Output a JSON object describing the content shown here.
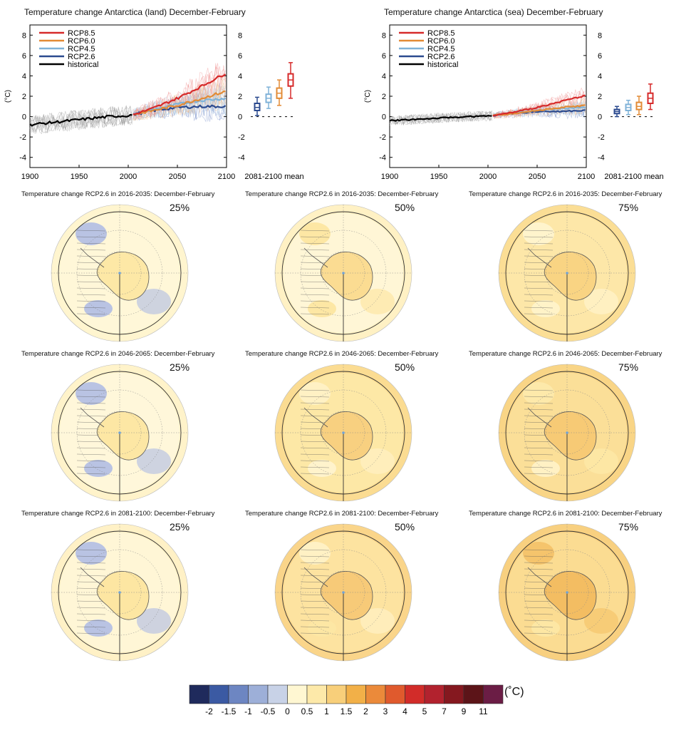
{
  "timeseries": [
    {
      "title": "Temperature change Antarctica (land) December-February",
      "ylabel": "(°C)",
      "legend": [
        "RCP8.5",
        "RCP6.0",
        "RCP4.5",
        "RCP2.6",
        "historical"
      ],
      "boxplot_label": "2081-2100 mean",
      "x_ticks": [
        "1900",
        "1950",
        "2000",
        "2050",
        "2100"
      ],
      "y_ticks": [
        "-4",
        "-2",
        "0",
        "2",
        "4",
        "6",
        "8"
      ]
    },
    {
      "title": "Temperature change Antarctica (sea) December-February",
      "ylabel": "(°C)",
      "legend": [
        "RCP8.5",
        "RCP6.0",
        "RCP4.5",
        "RCP2.6",
        "historical"
      ],
      "boxplot_label": "2081-2100 mean",
      "x_ticks": [
        "1900",
        "1950",
        "2000",
        "2050",
        "2100"
      ],
      "y_ticks": [
        "-4",
        "-2",
        "0",
        "2",
        "4",
        "6",
        "8"
      ]
    }
  ],
  "maps": [
    {
      "title": "Temperature change RCP2.6 in 2016-2035: December-February",
      "pct": "25%"
    },
    {
      "title": "Temperature change RCP2.6 in 2016-2035: December-February",
      "pct": "50%"
    },
    {
      "title": "Temperature change RCP2.6 in 2016-2035: December-February",
      "pct": "75%"
    },
    {
      "title": "Temperature change RCP2.6 in 2046-2065: December-February",
      "pct": "25%"
    },
    {
      "title": "Temperature change RCP2.6 in 2046-2065: December-February",
      "pct": "50%"
    },
    {
      "title": "Temperature change RCP2.6 in 2046-2065: December-February",
      "pct": "75%"
    },
    {
      "title": "Temperature change RCP2.6 in 2081-2100: December-February",
      "pct": "25%"
    },
    {
      "title": "Temperature change RCP2.6 in 2081-2100: December-February",
      "pct": "50%"
    },
    {
      "title": "Temperature change RCP2.6 in 2081-2100: December-February",
      "pct": "75%"
    }
  ],
  "colorbar": {
    "unit": "(˚C)",
    "labels": [
      "-2",
      "-1.5",
      "-1",
      "-0.5",
      "0",
      "0.5",
      "1",
      "1.5",
      "2",
      "3",
      "4",
      "5",
      "7",
      "9",
      "11"
    ],
    "colors": [
      "#1f2a5c",
      "#3b5aa3",
      "#6d86c2",
      "#9dafd8",
      "#c8d2e7",
      "#fff7d2",
      "#fde9a9",
      "#f8cf7a",
      "#f2b048",
      "#eb8a3a",
      "#e05a2d",
      "#d22c29",
      "#b2222e",
      "#85181f",
      "#5c1418",
      "#6b1d45"
    ]
  },
  "chart_data": [
    {
      "type": "line",
      "title": "Temperature change Antarctica (land) December-February",
      "xlabel": "",
      "ylabel": "(°C)",
      "xlim": [
        1900,
        2100
      ],
      "ylim": [
        -5,
        9
      ],
      "grid": false,
      "legend_position": "top-left",
      "series": [
        {
          "name": "historical",
          "color": "#000000",
          "x": [
            1900,
            1920,
            1940,
            1960,
            1980,
            2000,
            2005
          ],
          "values": [
            -0.8,
            -0.6,
            -0.4,
            -0.2,
            0.0,
            0.1,
            0.2
          ]
        },
        {
          "name": "RCP2.6",
          "color": "#2b4a8f",
          "x": [
            2005,
            2025,
            2050,
            2075,
            2100
          ],
          "values": [
            0.2,
            0.6,
            0.9,
            1.0,
            1.0
          ]
        },
        {
          "name": "RCP4.5",
          "color": "#7fb2d8",
          "x": [
            2005,
            2025,
            2050,
            2075,
            2100
          ],
          "values": [
            0.2,
            0.7,
            1.2,
            1.6,
            1.8
          ]
        },
        {
          "name": "RCP6.0",
          "color": "#e28b36",
          "x": [
            2005,
            2025,
            2050,
            2075,
            2100
          ],
          "values": [
            0.2,
            0.6,
            1.1,
            1.8,
            2.5
          ]
        },
        {
          "name": "RCP8.5",
          "color": "#d62a2a",
          "x": [
            2005,
            2025,
            2050,
            2075,
            2100
          ],
          "values": [
            0.2,
            0.8,
            1.8,
            3.0,
            4.3
          ]
        }
      ],
      "boxplots": [
        {
          "name": "RCP2.6",
          "color": "#2b4a8f",
          "min": 0.1,
          "q1": 0.6,
          "median": 0.9,
          "q3": 1.3,
          "max": 1.9
        },
        {
          "name": "RCP4.5",
          "color": "#7fb2d8",
          "min": 0.8,
          "q1": 1.4,
          "median": 1.8,
          "q3": 2.2,
          "max": 2.9
        },
        {
          "name": "RCP6.0",
          "color": "#e28b36",
          "min": 1.1,
          "q1": 1.8,
          "median": 2.3,
          "q3": 2.8,
          "max": 3.6
        },
        {
          "name": "RCP8.5",
          "color": "#d62a2a",
          "min": 1.8,
          "q1": 3.0,
          "median": 3.6,
          "q3": 4.2,
          "max": 5.3
        }
      ]
    },
    {
      "type": "line",
      "title": "Temperature change Antarctica (sea) December-February",
      "xlabel": "",
      "ylabel": "(°C)",
      "xlim": [
        1900,
        2100
      ],
      "ylim": [
        -5,
        9
      ],
      "grid": false,
      "legend_position": "top-left",
      "series": [
        {
          "name": "historical",
          "color": "#000000",
          "x": [
            1900,
            1920,
            1940,
            1960,
            1980,
            2000,
            2005
          ],
          "values": [
            -0.4,
            -0.3,
            -0.2,
            -0.1,
            0.0,
            0.05,
            0.1
          ]
        },
        {
          "name": "RCP2.6",
          "color": "#2b4a8f",
          "x": [
            2005,
            2025,
            2050,
            2075,
            2100
          ],
          "values": [
            0.1,
            0.3,
            0.5,
            0.5,
            0.6
          ]
        },
        {
          "name": "RCP4.5",
          "color": "#7fb2d8",
          "x": [
            2005,
            2025,
            2050,
            2075,
            2100
          ],
          "values": [
            0.1,
            0.35,
            0.6,
            0.8,
            0.9
          ]
        },
        {
          "name": "RCP6.0",
          "color": "#e28b36",
          "x": [
            2005,
            2025,
            2050,
            2075,
            2100
          ],
          "values": [
            0.1,
            0.3,
            0.6,
            0.9,
            1.1
          ]
        },
        {
          "name": "RCP8.5",
          "color": "#d62a2a",
          "x": [
            2005,
            2025,
            2050,
            2075,
            2100
          ],
          "values": [
            0.1,
            0.4,
            0.9,
            1.5,
            2.1
          ]
        }
      ],
      "boxplots": [
        {
          "name": "RCP2.6",
          "color": "#2b4a8f",
          "min": 0.0,
          "q1": 0.3,
          "median": 0.5,
          "q3": 0.7,
          "max": 1.0
        },
        {
          "name": "RCP4.5",
          "color": "#7fb2d8",
          "min": 0.2,
          "q1": 0.6,
          "median": 0.9,
          "q3": 1.2,
          "max": 1.6
        },
        {
          "name": "RCP6.0",
          "color": "#e28b36",
          "min": 0.2,
          "q1": 0.7,
          "median": 1.0,
          "q3": 1.4,
          "max": 2.0
        },
        {
          "name": "RCP8.5",
          "color": "#d62a2a",
          "min": 0.7,
          "q1": 1.3,
          "median": 1.8,
          "q3": 2.3,
          "max": 3.2
        }
      ]
    }
  ]
}
